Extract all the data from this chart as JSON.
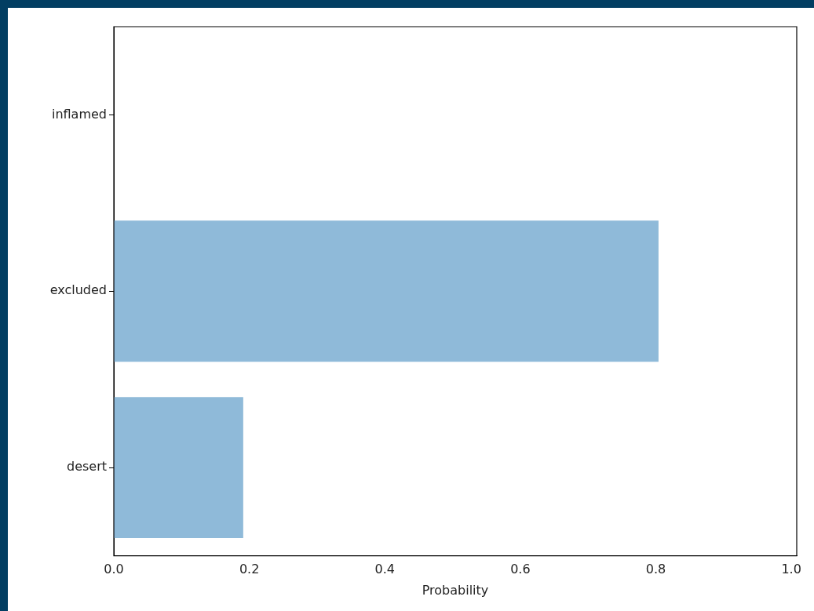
{
  "chart_data": {
    "type": "bar",
    "orientation": "horizontal",
    "categories": [
      "inflamed",
      "excluded",
      "desert"
    ],
    "values": [
      0,
      0.804,
      0.191
    ],
    "color": "#8fbad9",
    "xlabel": "Probability",
    "xlim": [
      0,
      1.008
    ],
    "xticks": [
      {
        "value": 0,
        "label": "0.0"
      },
      {
        "value": 0.2,
        "label": "0.2"
      },
      {
        "value": 0.4,
        "label": "0.4"
      },
      {
        "value": 0.6,
        "label": "0.6"
      },
      {
        "value": 0.8,
        "label": "0.8"
      },
      {
        "value": 1,
        "label": "1.0"
      }
    ],
    "grid": false,
    "legend": false
  }
}
